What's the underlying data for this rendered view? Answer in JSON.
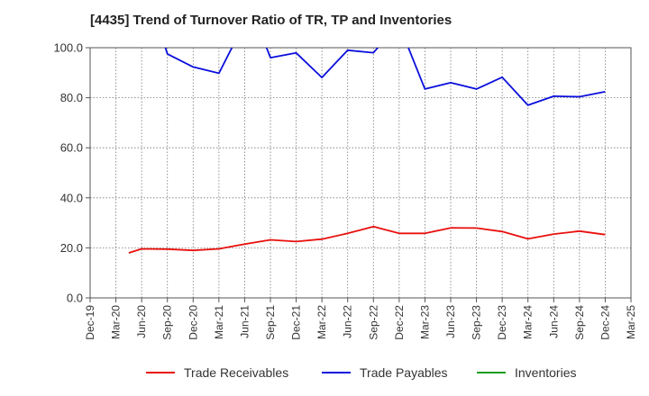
{
  "chart_data": {
    "type": "line",
    "title": "[4435]  Trend of Turnover Ratio of TR, TP and Inventories",
    "xlabel": "",
    "ylabel": "",
    "ylim": [
      0,
      100
    ],
    "yticks": [
      "0.0",
      "20.0",
      "40.0",
      "60.0",
      "80.0",
      "100.0"
    ],
    "x_tick_labels": [
      "Dec-19",
      "Mar-20",
      "Jun-20",
      "Sep-20",
      "Dec-20",
      "Mar-21",
      "Jun-21",
      "Sep-21",
      "Dec-21",
      "Mar-22",
      "Jun-22",
      "Sep-22",
      "Dec-22",
      "Mar-23",
      "Jun-23",
      "Sep-23",
      "Dec-23",
      "Mar-24",
      "Jun-24",
      "Sep-24",
      "Dec-24",
      "Mar-25"
    ],
    "grid": true,
    "legend_position": "bottom",
    "series": [
      {
        "name": "Trade Receivables",
        "color": "#e8100d",
        "points": [
          [
            1.5,
            18.0
          ],
          [
            2,
            19.6
          ],
          [
            3,
            19.5
          ],
          [
            4,
            19.0
          ],
          [
            5,
            19.6
          ],
          [
            6,
            21.5
          ],
          [
            7,
            23.2
          ],
          [
            8,
            22.5
          ],
          [
            9,
            23.5
          ],
          [
            10,
            25.8
          ],
          [
            11,
            28.5
          ],
          [
            12,
            25.8
          ],
          [
            13,
            25.8
          ],
          [
            14,
            28.0
          ],
          [
            15,
            27.9
          ],
          [
            16,
            26.5
          ],
          [
            17,
            23.6
          ],
          [
            18,
            25.5
          ],
          [
            19,
            26.7
          ],
          [
            20,
            25.3
          ]
        ]
      },
      {
        "name": "Trade Payables",
        "color": "#0a0fdc",
        "points": [
          [
            2.8,
            104
          ],
          [
            3,
            97.5
          ],
          [
            4,
            92.3
          ],
          [
            5,
            89.8
          ],
          [
            5.7,
            104
          ],
          [
            6.7,
            104
          ],
          [
            7,
            96.0
          ],
          [
            8,
            97.9
          ],
          [
            9,
            88.1
          ],
          [
            10,
            99.0
          ],
          [
            11,
            98.0
          ],
          [
            11.5,
            104
          ],
          [
            12.2,
            104
          ],
          [
            13,
            83.5
          ],
          [
            14,
            86.0
          ],
          [
            15,
            83.5
          ],
          [
            16,
            88.2
          ],
          [
            17,
            77.0
          ],
          [
            18,
            80.6
          ],
          [
            19,
            80.4
          ],
          [
            20,
            82.4
          ]
        ]
      },
      {
        "name": "Inventories",
        "color": "#1a9e1a",
        "points": []
      }
    ]
  }
}
